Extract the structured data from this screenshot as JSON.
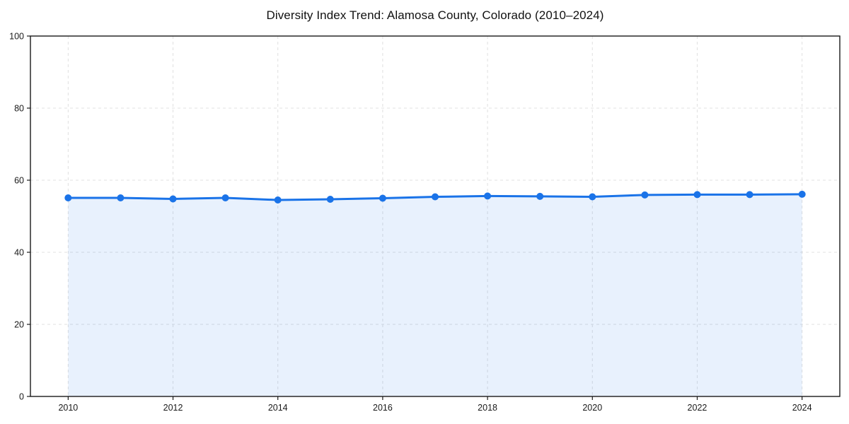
{
  "chart_data": {
    "type": "area",
    "title": "Diversity Index Trend: Alamosa County, Colorado (2010–2024)",
    "x": [
      2010,
      2011,
      2012,
      2013,
      2014,
      2015,
      2016,
      2017,
      2018,
      2019,
      2020,
      2021,
      2022,
      2023,
      2024
    ],
    "series": [
      {
        "name": "Diversity Index",
        "values": [
          55.1,
          55.1,
          54.8,
          55.1,
          54.5,
          54.7,
          55.0,
          55.4,
          55.6,
          55.5,
          55.4,
          55.9,
          56.0,
          56.0,
          56.1
        ]
      }
    ],
    "xlabel": "",
    "ylabel": "",
    "xlim": [
      2009.28,
      2024.72
    ],
    "ylim": [
      0,
      100
    ],
    "x_ticks": [
      2010,
      2012,
      2014,
      2016,
      2018,
      2020,
      2022,
      2024
    ],
    "y_ticks": [
      0,
      20,
      40,
      60,
      80,
      100
    ],
    "grid": "dashed",
    "legend": "none",
    "marker": "circle",
    "colors": {
      "line": "#1a73e8",
      "marker": "#1a73e8",
      "area_fill": "#1a73e8",
      "area_fill_opacity": 0.1,
      "grid": "#e0e0e0",
      "spine": "#1a1a1a",
      "tick": "#1a1a1a",
      "tick_label": "#1a1a1a",
      "title": "#111111",
      "background": "#ffffff"
    }
  }
}
